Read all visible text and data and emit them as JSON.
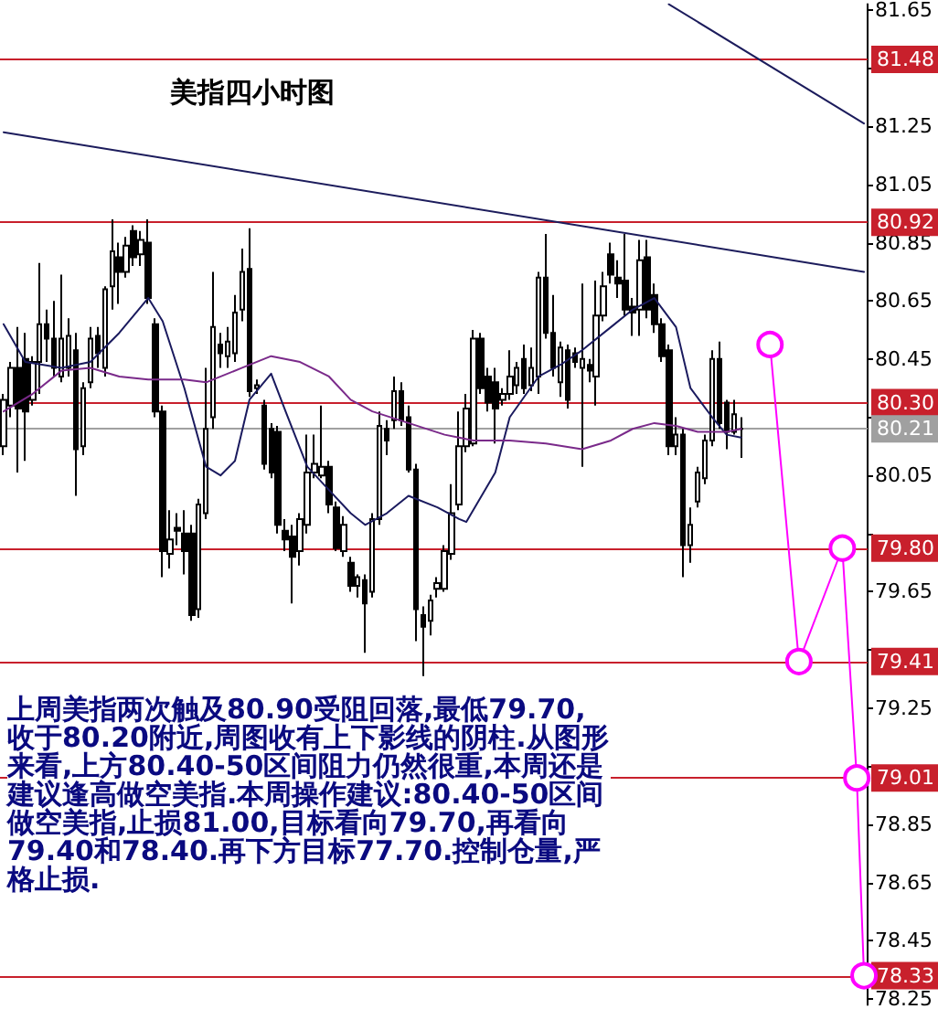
{
  "chart_data": {
    "type": "candlestick",
    "title": "美指四小时图",
    "color": "#000000",
    "categories": [
      null,
      null,
      null,
      null,
      null,
      null,
      null,
      null,
      null,
      null,
      null,
      null,
      null,
      null,
      null,
      null,
      null,
      null,
      null,
      null,
      null,
      null,
      null,
      null,
      null,
      null,
      null,
      null,
      null,
      null,
      null,
      null,
      null,
      null,
      null,
      null,
      null,
      null,
      null,
      null,
      null,
      null,
      null,
      null,
      null,
      null,
      null,
      null,
      null,
      null,
      null,
      null,
      null,
      null,
      null,
      null,
      null,
      null,
      null,
      null,
      null,
      null,
      null,
      null,
      null,
      null,
      null,
      null,
      null,
      null,
      null,
      null,
      null,
      null,
      null,
      null,
      null,
      null,
      null,
      null,
      null,
      null,
      null,
      null,
      null,
      null,
      null,
      null,
      null,
      null,
      null,
      null,
      null,
      null,
      null,
      null,
      null,
      null,
      null,
      null,
      null,
      null,
      null,
      null,
      null,
      null,
      null,
      null,
      null,
      null,
      null,
      null,
      null,
      null,
      null,
      null,
      null,
      null,
      null,
      null
    ],
    "ohlc": [
      [
        80.15,
        80.33,
        80.12,
        80.31
      ],
      [
        80.29,
        80.44,
        80.25,
        80.42
      ],
      [
        80.42,
        80.56,
        80.06,
        80.28
      ],
      [
        80.45,
        80.54,
        80.1,
        80.27
      ],
      [
        80.31,
        80.46,
        80.29,
        80.44
      ],
      [
        80.44,
        80.78,
        80.33,
        80.57
      ],
      [
        80.57,
        80.62,
        80.44,
        80.52
      ],
      [
        80.52,
        80.65,
        80.39,
        80.42
      ],
      [
        80.39,
        80.74,
        80.37,
        80.52
      ],
      [
        80.42,
        80.59,
        80.39,
        80.53
      ],
      [
        80.48,
        80.54,
        79.98,
        80.14
      ],
      [
        80.15,
        80.37,
        80.12,
        80.35
      ],
      [
        80.37,
        80.56,
        80.35,
        80.52
      ],
      [
        80.53,
        80.56,
        80.42,
        80.47
      ],
      [
        80.42,
        80.7,
        80.39,
        80.69
      ],
      [
        80.7,
        80.93,
        80.62,
        80.82
      ],
      [
        80.8,
        80.85,
        80.64,
        80.75
      ],
      [
        80.75,
        80.87,
        80.73,
        80.84
      ],
      [
        80.89,
        80.91,
        80.77,
        80.8
      ],
      [
        80.81,
        80.89,
        80.77,
        80.86
      ],
      [
        80.85,
        80.93,
        80.64,
        80.66
      ],
      [
        80.57,
        80.59,
        80.25,
        80.27
      ],
      [
        80.27,
        80.29,
        79.7,
        79.79
      ],
      [
        79.78,
        79.93,
        79.73,
        79.83
      ],
      [
        79.87,
        79.92,
        79.81,
        79.86
      ],
      [
        79.85,
        79.93,
        79.71,
        79.79
      ],
      [
        79.85,
        79.88,
        79.55,
        79.57
      ],
      [
        79.59,
        79.97,
        79.56,
        79.95
      ],
      [
        79.92,
        80.42,
        79.9,
        80.21
      ],
      [
        80.25,
        80.75,
        80.21,
        80.56
      ],
      [
        80.5,
        80.54,
        80.42,
        80.47
      ],
      [
        80.46,
        80.56,
        80.42,
        80.51
      ],
      [
        80.47,
        80.67,
        80.44,
        80.61
      ],
      [
        80.62,
        80.83,
        80.58,
        80.75
      ],
      [
        80.76,
        80.9,
        80.32,
        80.34
      ],
      [
        80.35,
        80.38,
        80.33,
        80.36
      ],
      [
        80.29,
        80.31,
        80.07,
        80.09
      ],
      [
        80.21,
        80.23,
        80.04,
        80.06
      ],
      [
        80.2,
        80.22,
        79.85,
        79.88
      ],
      [
        79.86,
        79.9,
        79.79,
        79.83
      ],
      [
        79.84,
        79.88,
        79.61,
        79.77
      ],
      [
        79.79,
        79.92,
        79.74,
        79.9
      ],
      [
        79.88,
        80.19,
        79.85,
        80.06
      ],
      [
        80.06,
        80.19,
        80.04,
        80.09
      ],
      [
        80.05,
        80.29,
        80.04,
        80.08
      ],
      [
        80.08,
        80.1,
        79.92,
        79.95
      ],
      [
        79.94,
        79.96,
        79.79,
        79.8
      ],
      [
        79.79,
        79.91,
        79.77,
        79.88
      ],
      [
        79.75,
        79.77,
        79.65,
        79.67
      ],
      [
        79.67,
        79.71,
        79.63,
        79.7
      ],
      [
        79.69,
        79.71,
        79.44,
        79.61
      ],
      [
        79.65,
        79.92,
        79.63,
        79.9
      ],
      [
        79.9,
        80.27,
        79.88,
        80.22
      ],
      [
        80.21,
        80.24,
        80.12,
        80.17
      ],
      [
        80.24,
        80.39,
        80.21,
        80.34
      ],
      [
        80.34,
        80.37,
        80.22,
        80.24
      ],
      [
        80.25,
        80.29,
        80.06,
        80.07
      ],
      [
        80.07,
        80.09,
        79.48,
        79.59
      ],
      [
        79.57,
        79.6,
        79.36,
        79.53
      ],
      [
        79.55,
        79.64,
        79.5,
        79.62
      ],
      [
        79.66,
        79.7,
        79.63,
        79.68
      ],
      [
        79.66,
        79.81,
        79.65,
        79.79
      ],
      [
        79.78,
        80.02,
        79.76,
        79.92
      ],
      [
        79.95,
        80.27,
        79.93,
        80.15
      ],
      [
        80.15,
        80.33,
        80.13,
        80.28
      ],
      [
        80.16,
        80.55,
        80.15,
        80.52
      ],
      [
        80.52,
        80.54,
        80.33,
        80.35
      ],
      [
        80.39,
        80.42,
        80.27,
        80.3
      ],
      [
        80.37,
        80.42,
        80.16,
        80.28
      ],
      [
        80.31,
        80.35,
        80.29,
        80.33
      ],
      [
        80.33,
        80.48,
        80.31,
        80.39
      ],
      [
        80.36,
        80.44,
        80.33,
        80.42
      ],
      [
        80.45,
        80.5,
        80.33,
        80.35
      ],
      [
        80.36,
        80.49,
        80.34,
        80.42
      ],
      [
        80.39,
        80.75,
        80.33,
        80.73
      ],
      [
        80.73,
        80.88,
        80.52,
        80.54
      ],
      [
        80.54,
        80.67,
        80.39,
        80.42
      ],
      [
        80.37,
        80.51,
        80.32,
        80.49
      ],
      [
        80.48,
        80.5,
        80.28,
        80.31
      ],
      [
        80.47,
        80.49,
        80.42,
        80.44
      ],
      [
        80.42,
        80.71,
        80.08,
        80.45
      ],
      [
        80.43,
        80.45,
        80.37,
        80.41
      ],
      [
        80.39,
        80.72,
        80.29,
        80.6
      ],
      [
        80.6,
        80.75,
        80.58,
        80.7
      ],
      [
        80.81,
        80.85,
        80.71,
        80.74
      ],
      [
        80.73,
        80.79,
        80.66,
        80.71
      ],
      [
        80.72,
        80.88,
        80.6,
        80.62
      ],
      [
        80.63,
        80.66,
        80.53,
        80.61
      ],
      [
        80.62,
        80.86,
        80.53,
        80.79
      ],
      [
        80.8,
        80.86,
        80.59,
        80.62
      ],
      [
        80.67,
        80.71,
        80.54,
        80.57
      ],
      [
        80.57,
        80.59,
        80.44,
        80.46
      ],
      [
        80.48,
        80.5,
        80.12,
        80.15
      ],
      [
        80.15,
        80.25,
        80.12,
        80.19
      ],
      [
        80.19,
        80.21,
        79.7,
        79.81
      ],
      [
        79.81,
        79.94,
        79.75,
        79.88
      ],
      [
        79.96,
        80.08,
        79.94,
        80.06
      ],
      [
        80.04,
        80.19,
        80.02,
        80.17
      ],
      [
        80.17,
        80.48,
        80.15,
        80.45
      ],
      [
        80.45,
        80.51,
        80.21,
        80.23
      ],
      [
        80.3,
        80.31,
        80.14,
        80.2
      ],
      [
        80.2,
        80.31,
        80.19,
        80.26
      ],
      [
        80.21,
        80.25,
        80.11,
        80.21
      ],
      null,
      null,
      null,
      null,
      null,
      null,
      null,
      null,
      null,
      null,
      null,
      null,
      null,
      null,
      null,
      null,
      null
    ],
    "series": [
      {
        "type": "line",
        "color": "#1a1a5e",
        "values": [
          80.57,
          null,
          null,
          80.44,
          null,
          null,
          null,
          null,
          80.42,
          null,
          null,
          null,
          80.44,
          null,
          null,
          null,
          80.54,
          null,
          null,
          null,
          80.66,
          null,
          80.58,
          null,
          null,
          80.35,
          null,
          null,
          80.08,
          null,
          80.05,
          null,
          80.1,
          null,
          80.31,
          null,
          null,
          80.4,
          null,
          80.27,
          null,
          null,
          80.08,
          null,
          null,
          80.0,
          null,
          null,
          79.92,
          null,
          79.88,
          null,
          null,
          79.92,
          null,
          null,
          79.98,
          null,
          null,
          null,
          79.94,
          null,
          null,
          79.9,
          79.89,
          null,
          null,
          null,
          80.06,
          null,
          80.25,
          null,
          null,
          null,
          80.39,
          null,
          null,
          80.43,
          null,
          null,
          80.48,
          null,
          null,
          null,
          80.56,
          null,
          null,
          80.62,
          null,
          null,
          80.66,
          null,
          null,
          80.56,
          null,
          80.35,
          null,
          null,
          80.25,
          null,
          80.19,
          null,
          80.18,
          null,
          null,
          null,
          null,
          null,
          null,
          null,
          null,
          null,
          null,
          null,
          null,
          null,
          null,
          null,
          null,
          null
        ]
      },
      {
        "type": "line",
        "color": "#7a2a8a",
        "values": [
          80.27,
          null,
          null,
          null,
          80.33,
          null,
          null,
          null,
          80.41,
          null,
          null,
          null,
          80.42,
          null,
          null,
          null,
          80.39,
          null,
          null,
          null,
          80.38,
          null,
          null,
          null,
          null,
          80.38,
          null,
          null,
          80.37,
          null,
          null,
          null,
          null,
          80.42,
          null,
          null,
          null,
          80.46,
          null,
          null,
          null,
          80.44,
          null,
          null,
          null,
          80.39,
          null,
          null,
          80.31,
          null,
          null,
          80.27,
          null,
          null,
          null,
          null,
          80.23,
          null,
          null,
          null,
          null,
          80.19,
          null,
          null,
          null,
          80.17,
          null,
          null,
          null,
          null,
          80.17,
          null,
          null,
          null,
          null,
          80.16,
          null,
          null,
          null,
          null,
          80.14,
          null,
          null,
          null,
          80.17,
          null,
          null,
          80.21,
          null,
          null,
          80.23,
          null,
          null,
          80.22,
          null,
          null,
          80.2,
          null,
          null,
          null,
          80.2,
          null,
          80.21,
          null,
          null,
          null,
          null,
          null,
          null,
          null,
          null,
          null,
          null,
          null,
          null,
          null,
          null,
          null,
          null,
          null
        ]
      },
      {
        "type": "line",
        "color": "#1c1c5c",
        "values": [
          81.23,
          null,
          null,
          null,
          null,
          null,
          null,
          null,
          null,
          null,
          null,
          null,
          null,
          null,
          null,
          null,
          null,
          null,
          null,
          null,
          null,
          null,
          null,
          null,
          null,
          null,
          null,
          null,
          null,
          null,
          null,
          null,
          null,
          null,
          null,
          null,
          null,
          null,
          null,
          null,
          null,
          null,
          null,
          null,
          null,
          null,
          null,
          null,
          null,
          null,
          null,
          null,
          null,
          null,
          null,
          null,
          null,
          null,
          null,
          null,
          null,
          null,
          null,
          null,
          null,
          null,
          null,
          null,
          null,
          null,
          null,
          null,
          null,
          null,
          null,
          null,
          null,
          null,
          null,
          null,
          null,
          null,
          null,
          null,
          null,
          null,
          null,
          null,
          null,
          null,
          null,
          null,
          null,
          null,
          null,
          null,
          null,
          null,
          null,
          null,
          null,
          null,
          null,
          null,
          null,
          null,
          null,
          null,
          null,
          null,
          null,
          null,
          null,
          null,
          null,
          null,
          null,
          null,
          null,
          80.75
        ]
      },
      {
        "type": "line",
        "color": "#1c1c5c",
        "values": [
          null,
          null,
          null,
          null,
          null,
          null,
          null,
          null,
          null,
          null,
          null,
          null,
          null,
          null,
          null,
          null,
          null,
          null,
          null,
          null,
          null,
          null,
          null,
          null,
          null,
          null,
          null,
          null,
          null,
          null,
          null,
          null,
          null,
          null,
          null,
          null,
          null,
          null,
          null,
          null,
          null,
          null,
          null,
          null,
          null,
          null,
          null,
          null,
          null,
          null,
          null,
          null,
          null,
          null,
          null,
          null,
          null,
          null,
          null,
          null,
          null,
          null,
          null,
          null,
          null,
          null,
          null,
          null,
          null,
          null,
          null,
          null,
          null,
          null,
          null,
          null,
          null,
          null,
          null,
          null,
          null,
          null,
          null,
          null,
          null,
          null,
          null,
          null,
          null,
          null,
          null,
          null,
          81.67,
          null,
          null,
          null,
          null,
          null,
          null,
          null,
          null,
          null,
          null,
          null,
          null,
          null,
          null,
          null,
          null,
          null,
          null,
          null,
          null,
          null,
          null,
          null,
          null,
          null,
          null,
          81.26
        ]
      },
      {
        "type": "line",
        "color": "#ff00ff",
        "marker": "circle",
        "values": [
          null,
          null,
          null,
          null,
          null,
          null,
          null,
          null,
          null,
          null,
          null,
          null,
          null,
          null,
          null,
          null,
          null,
          null,
          null,
          null,
          null,
          null,
          null,
          null,
          null,
          null,
          null,
          null,
          null,
          null,
          null,
          null,
          null,
          null,
          null,
          null,
          null,
          null,
          null,
          null,
          null,
          null,
          null,
          null,
          null,
          null,
          null,
          null,
          null,
          null,
          null,
          null,
          null,
          null,
          null,
          null,
          null,
          null,
          null,
          null,
          null,
          null,
          null,
          null,
          null,
          null,
          null,
          null,
          null,
          null,
          null,
          null,
          null,
          null,
          null,
          null,
          null,
          null,
          null,
          null,
          null,
          null,
          null,
          null,
          null,
          null,
          null,
          null,
          null,
          null,
          null,
          null,
          null,
          null,
          null,
          null,
          null,
          null,
          null,
          null,
          null,
          null,
          null,
          null,
          null,
          null,
          80.5,
          null,
          null,
          null,
          79.41,
          null,
          null,
          null,
          null,
          null,
          79.8,
          null,
          79.01,
          78.33
        ]
      }
    ],
    "ylim": [
      78.23,
      81.67
    ],
    "yticks": [
      78.25,
      78.45,
      78.65,
      78.85,
      {
        "value": 79.05,
        "label": null
      },
      79.25,
      {
        "value": 79.45,
        "label": null
      },
      79.65,
      {
        "value": 79.85,
        "label": null
      },
      80.05,
      {
        "value": 80.25,
        "label": null
      },
      80.45,
      80.65,
      80.85,
      81.05,
      81.25,
      {
        "value": 81.45,
        "label": null
      },
      81.65
    ],
    "ref_lines": [
      {
        "axis": "y",
        "value": 81.48,
        "label": "81.48",
        "color": "#c8202c"
      },
      {
        "axis": "y",
        "value": 80.92,
        "label": "80.92",
        "color": "#c8202c"
      },
      {
        "axis": "y",
        "value": 80.3,
        "label": "80.30",
        "color": "#c8202c"
      },
      {
        "axis": "y",
        "value": 80.21,
        "label": "80.21",
        "color": "#a0a0a0"
      },
      {
        "axis": "y",
        "value": 79.8,
        "label": "79.80",
        "color": "#c8202c"
      },
      {
        "axis": "y",
        "value": 79.41,
        "label": "79.41",
        "color": "#c8202c"
      },
      {
        "axis": "y",
        "value": 79.01,
        "label": "79.01",
        "color": "#c8202c"
      },
      {
        "axis": "y",
        "value": 78.33,
        "label": "78.33",
        "color": "#c8202c"
      }
    ],
    "annotations": [
      "上周美指两次触及80.90受阻回落,最低79.70,收于80.20附近,周图收有上下影线的阴柱.从图形来看,上方80.40-50区间阻力仍然很重,本周还是建议逢高做空美指.本周操作建议:80.40-50区间做空美指,止损81.00,目标看向79.70,再看向79.40和78.40.再下方目标77.70.控制仓量,严格止损."
    ],
    "marker": "none",
    "grid": false,
    "tick_labels": "y"
  }
}
